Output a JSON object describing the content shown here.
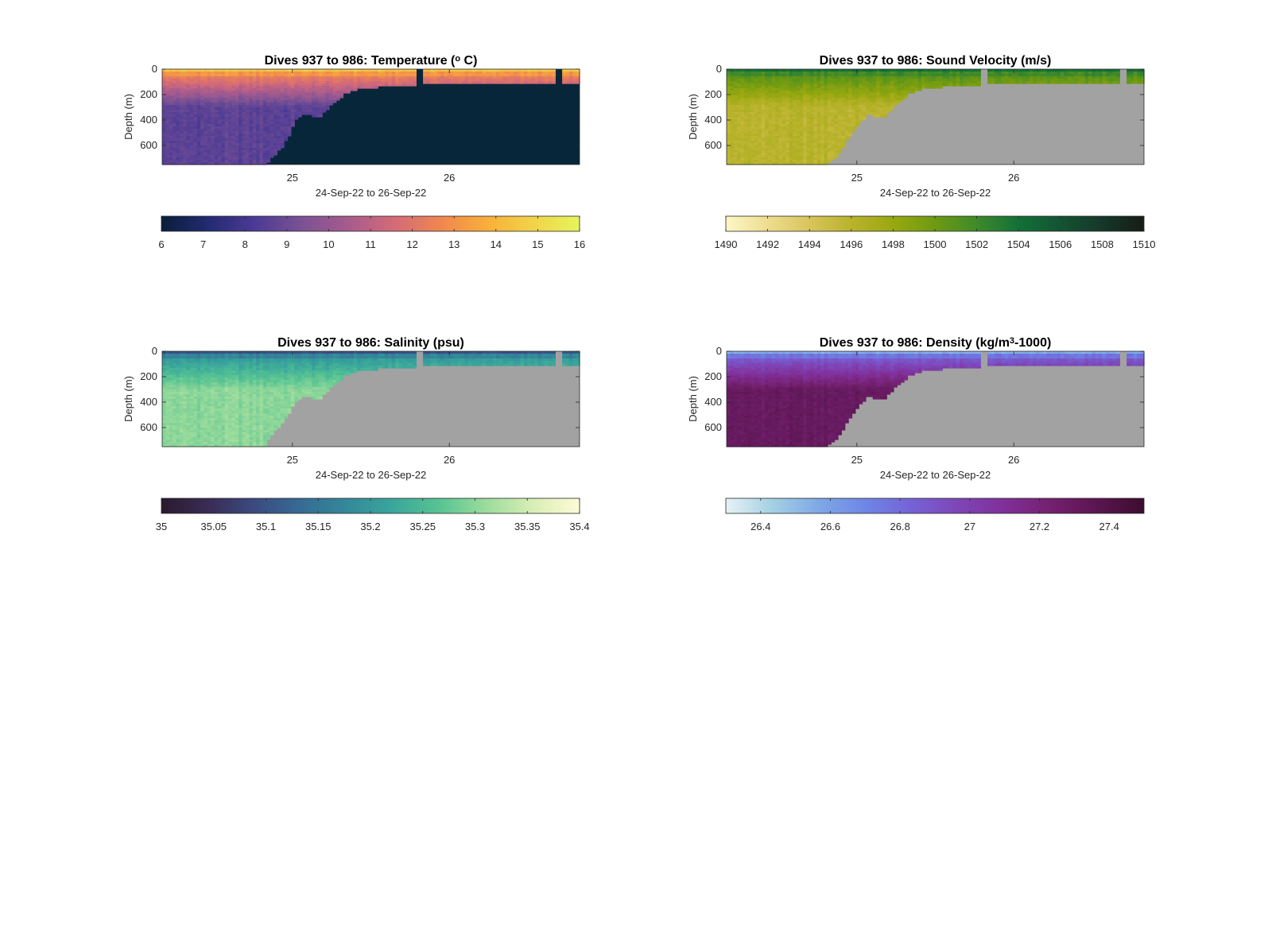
{
  "chart_data": [
    {
      "type": "heatmap",
      "id": "temperature",
      "title": "Dives 937 to 986: Temperature (° C)",
      "title_parts": [
        "Dives 937 to 986: Temperature (",
        "o",
        " C)"
      ],
      "ylabel": "Depth (m)",
      "xlabel": "24-Sep-22 to 26-Sep-22",
      "x_ticks": [
        "25",
        "26"
      ],
      "y_ticks": [
        "0",
        "200",
        "400",
        "600"
      ],
      "x_range_days": [
        24.17,
        26.83
      ],
      "ylim": [
        0,
        750
      ],
      "y_reversed": true,
      "colorbar_ticks": [
        "6",
        "7",
        "8",
        "9",
        "10",
        "11",
        "12",
        "13",
        "14",
        "15",
        "16"
      ],
      "clim": [
        6,
        16
      ],
      "colormap": [
        "#0a1e3a",
        "#232a72",
        "#4b3a95",
        "#7a5194",
        "#a65b8e",
        "#d46a78",
        "#ef8650",
        "#f9ae3a",
        "#f1d34a",
        "#e6f55a"
      ],
      "mask_color": "#07263a",
      "profile": {
        "surface": 14.5,
        "mixed": 12.5,
        "deep": 8.6,
        "mixed_depth": 50
      },
      "data_max_depth": [
        [
          24.17,
          750
        ],
        [
          24.82,
          750
        ],
        [
          24.88,
          690
        ],
        [
          24.93,
          620
        ],
        [
          24.98,
          520
        ],
        [
          25.02,
          400
        ],
        [
          25.07,
          360
        ],
        [
          25.12,
          365
        ],
        [
          25.18,
          380
        ],
        [
          25.23,
          300
        ],
        [
          25.28,
          250
        ],
        [
          25.34,
          190
        ],
        [
          25.4,
          160
        ],
        [
          25.47,
          150
        ],
        [
          25.55,
          140
        ],
        [
          25.65,
          130
        ],
        [
          25.75,
          130
        ],
        [
          25.85,
          120
        ],
        [
          26.8,
          120
        ],
        [
          26.83,
          120
        ]
      ],
      "gaps": [
        [
          25.78,
          25.83
        ],
        [
          26.67,
          26.72
        ]
      ]
    },
    {
      "type": "heatmap",
      "id": "sound-velocity",
      "title": "Dives 937 to 986: Sound Velocity (m/s)",
      "title_parts": [
        "Dives 937 to 986: Sound Velocity (m/s)"
      ],
      "ylabel": "Depth (m)",
      "xlabel": "24-Sep-22 to 26-Sep-22",
      "x_ticks": [
        "25",
        "26"
      ],
      "y_ticks": [
        "0",
        "200",
        "400",
        "600"
      ],
      "x_range_days": [
        24.17,
        26.83
      ],
      "ylim": [
        0,
        750
      ],
      "y_reversed": true,
      "colorbar_ticks": [
        "1490",
        "1492",
        "1494",
        "1496",
        "1498",
        "1500",
        "1502",
        "1504",
        "1506",
        "1508",
        "1510"
      ],
      "clim": [
        1490,
        1510
      ],
      "colormap": [
        "#fdf7c6",
        "#eedd90",
        "#d9c45c",
        "#b9b32c",
        "#99a810",
        "#6e9a12",
        "#3e8a2a",
        "#137038",
        "#135433",
        "#16372a",
        "#171c16"
      ],
      "mask_color": "#a2a2a2",
      "profile": {
        "surface": 1504,
        "mixed": 1501,
        "deep": 1496,
        "mixed_depth": 50
      },
      "data_max_depth": [
        [
          24.17,
          750
        ],
        [
          24.8,
          750
        ],
        [
          24.86,
          700
        ],
        [
          24.91,
          620
        ],
        [
          24.97,
          500
        ],
        [
          25.02,
          420
        ],
        [
          25.07,
          360
        ],
        [
          25.12,
          370
        ],
        [
          25.18,
          380
        ],
        [
          25.23,
          300
        ],
        [
          25.28,
          250
        ],
        [
          25.34,
          190
        ],
        [
          25.4,
          160
        ],
        [
          25.47,
          150
        ],
        [
          25.55,
          140
        ],
        [
          25.65,
          130
        ],
        [
          25.75,
          130
        ],
        [
          25.85,
          120
        ],
        [
          26.8,
          120
        ],
        [
          26.83,
          120
        ]
      ],
      "gaps": [
        [
          25.78,
          25.83
        ],
        [
          26.67,
          26.72
        ]
      ]
    },
    {
      "type": "heatmap",
      "id": "salinity",
      "title": "Dives 937 to 986: Salinity (psu)",
      "title_parts": [
        "Dives 937 to 986: Salinity (psu)"
      ],
      "ylabel": "Depth (m)",
      "xlabel": "24-Sep-22 to 26-Sep-22",
      "x_ticks": [
        "25",
        "26"
      ],
      "y_ticks": [
        "0",
        "200",
        "400",
        "600"
      ],
      "x_range_days": [
        24.17,
        26.83
      ],
      "ylim": [
        0,
        750
      ],
      "y_reversed": true,
      "colorbar_ticks": [
        "35",
        "35.05",
        "35.1",
        "35.15",
        "35.2",
        "35.25",
        "35.3",
        "35.35",
        "35.4"
      ],
      "clim": [
        35,
        35.4
      ],
      "colormap": [
        "#2a1a2e",
        "#3a2b55",
        "#3b4a80",
        "#366b94",
        "#33899a",
        "#3aa79b",
        "#58c493",
        "#9ddc9c",
        "#d9eeb6",
        "#fdfbd6"
      ],
      "mask_color": "#a2a2a2",
      "profile": {
        "surface": 35.1,
        "mixed": 35.2,
        "deep": 35.3,
        "mixed_depth": 50
      },
      "data_max_depth": [
        [
          24.17,
          750
        ],
        [
          24.82,
          750
        ],
        [
          24.87,
          660
        ],
        [
          24.92,
          580
        ],
        [
          24.97,
          500
        ],
        [
          25.02,
          400
        ],
        [
          25.07,
          360
        ],
        [
          25.12,
          365
        ],
        [
          25.18,
          380
        ],
        [
          25.23,
          300
        ],
        [
          25.28,
          250
        ],
        [
          25.34,
          190
        ],
        [
          25.4,
          160
        ],
        [
          25.47,
          150
        ],
        [
          25.55,
          140
        ],
        [
          25.65,
          130
        ],
        [
          25.75,
          130
        ],
        [
          25.85,
          120
        ],
        [
          26.8,
          120
        ],
        [
          26.83,
          120
        ]
      ],
      "gaps": [
        [
          25.78,
          25.83
        ],
        [
          26.67,
          26.72
        ]
      ]
    },
    {
      "type": "heatmap",
      "id": "density",
      "title": "Dives 937 to 986: Density (kg/m³-1000)",
      "title_parts": [
        "Dives 937 to 986: Density (kg/m",
        "3",
        "-1000)"
      ],
      "ylabel": "Depth (m)",
      "xlabel": "24-Sep-22 to 26-Sep-22",
      "x_ticks": [
        "25",
        "26"
      ],
      "y_ticks": [
        "0",
        "200",
        "400",
        "600"
      ],
      "x_range_days": [
        24.17,
        26.83
      ],
      "ylim": [
        0,
        750
      ],
      "y_reversed": true,
      "colorbar_ticks": [
        "26.4",
        "26.6",
        "26.8",
        "27",
        "27.2",
        "27.4"
      ],
      "clim": [
        26.3,
        27.5
      ],
      "colormap": [
        "#e7f2f5",
        "#a4d0e4",
        "#7fa8e6",
        "#6e86e6",
        "#7562d6",
        "#7f45b6",
        "#802f98",
        "#74206f",
        "#5a1550",
        "#3c0c2e"
      ],
      "mask_color": "#a2a2a2",
      "profile": {
        "surface": 26.55,
        "mixed": 26.85,
        "deep": 27.3,
        "mixed_depth": 50
      },
      "data_max_depth": [
        [
          24.17,
          750
        ],
        [
          24.8,
          750
        ],
        [
          24.86,
          700
        ],
        [
          24.91,
          620
        ],
        [
          24.97,
          500
        ],
        [
          25.02,
          420
        ],
        [
          25.07,
          360
        ],
        [
          25.12,
          370
        ],
        [
          25.18,
          380
        ],
        [
          25.23,
          300
        ],
        [
          25.28,
          250
        ],
        [
          25.34,
          190
        ],
        [
          25.4,
          160
        ],
        [
          25.47,
          150
        ],
        [
          25.55,
          140
        ],
        [
          25.65,
          130
        ],
        [
          25.75,
          130
        ],
        [
          25.85,
          120
        ],
        [
          26.8,
          120
        ],
        [
          26.83,
          120
        ]
      ],
      "gaps": [
        [
          25.78,
          25.83
        ],
        [
          26.67,
          26.72
        ]
      ]
    }
  ]
}
